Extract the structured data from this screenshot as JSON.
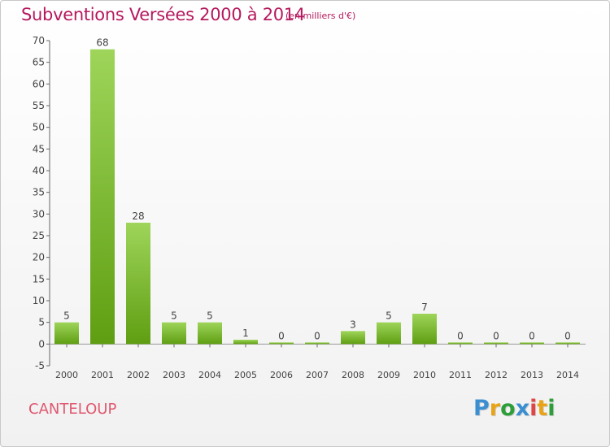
{
  "header": {
    "title": "Subventions Versées 2000 à 2014",
    "subtitle": "(en milliers d'€)"
  },
  "footer": {
    "location": "CANTELOUP",
    "brand": "Proxiti"
  },
  "colors": {
    "title": "#b5195e",
    "location": "#e0576f",
    "bar_top": "#9ed55a",
    "bar_bottom": "#5f9e12",
    "brand_letters": [
      "#3b8fd1",
      "#e8a317",
      "#2e9e3a",
      "#3b8fd1",
      "#e04545",
      "#e8a317",
      "#2e9e3a"
    ]
  },
  "chart_data": {
    "type": "bar",
    "categories": [
      "2000",
      "2001",
      "2002",
      "2003",
      "2004",
      "2005",
      "2006",
      "2007",
      "2008",
      "2009",
      "2010",
      "2011",
      "2012",
      "2013",
      "2014"
    ],
    "values": [
      5,
      68,
      28,
      5,
      5,
      1,
      0,
      0,
      3,
      5,
      7,
      0,
      0,
      0,
      0
    ],
    "ylim": [
      -5,
      70
    ],
    "yticks": [
      -5,
      0,
      5,
      10,
      15,
      20,
      25,
      30,
      35,
      40,
      45,
      50,
      55,
      60,
      65,
      70
    ],
    "grid": false,
    "data_labels": true
  }
}
